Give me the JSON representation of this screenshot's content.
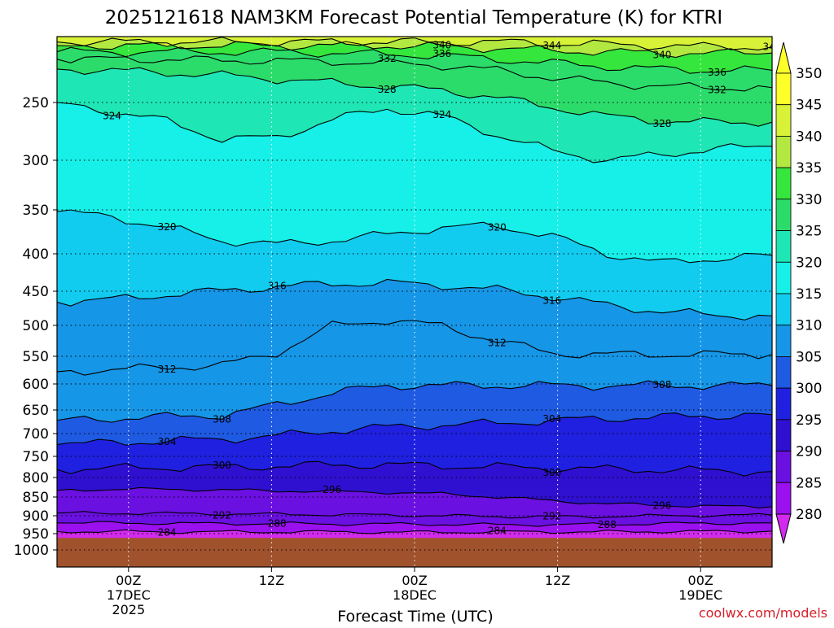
{
  "chart_data": {
    "type": "heatmap",
    "title": "2025121618 NAM3KM Forecast Potential Temperature (K) for KTRI",
    "xlabel": "Forecast Time (UTC)",
    "ylabel": "",
    "credit": "coolwx.com/models",
    "y_axis": {
      "unit": "hPa",
      "ticks": [
        "250",
        "300",
        "350",
        "400",
        "450",
        "500",
        "550",
        "600",
        "650",
        "700",
        "750",
        "800",
        "850",
        "900",
        "950",
        "1000"
      ],
      "range": [
        200,
        1050
      ]
    },
    "x_axis": {
      "unit": "hours since 2025121618",
      "range": [
        0,
        60
      ],
      "ticks": [
        {
          "hour": 6,
          "line1": "00Z",
          "line2": "17DEC",
          "line3": "2025"
        },
        {
          "hour": 18,
          "line1": "12Z",
          "line2": "",
          "line3": ""
        },
        {
          "hour": 30,
          "line1": "00Z",
          "line2": "18DEC",
          "line3": ""
        },
        {
          "hour": 42,
          "line1": "12Z",
          "line2": "",
          "line3": ""
        },
        {
          "hour": 54,
          "line1": "00Z",
          "line2": "19DEC",
          "line3": ""
        }
      ]
    },
    "colorbar": {
      "levels": [
        "350",
        "345",
        "340",
        "335",
        "330",
        "325",
        "320",
        "315",
        "310",
        "305",
        "300",
        "295",
        "290",
        "285",
        "280"
      ],
      "colors": [
        "#ffff2a",
        "#d7f237",
        "#b2e840",
        "#35e63d",
        "#2cdc6a",
        "#1ee6b4",
        "#16f0e8",
        "#12ccf0",
        "#1696e6",
        "#1e5ae2",
        "#2020e0",
        "#3010d0",
        "#6a10e0",
        "#9a10ee",
        "#d22aee"
      ]
    },
    "terrain_color": "#a0522d",
    "surface_pressure_hPa": 963,
    "contours": [
      {
        "label": "284",
        "values": [
          944,
          944,
          945,
          945,
          945,
          945,
          946,
          946,
          945,
          945,
          945,
          944,
          944,
          943
        ]
      },
      {
        "label": "288",
        "values": [
          920,
          920,
          921,
          922,
          922,
          923,
          923,
          924,
          925,
          925,
          924,
          922,
          921,
          920
        ]
      },
      {
        "label": "292",
        "values": [
          893,
          893,
          894,
          895,
          896,
          897,
          898,
          900,
          902,
          903,
          902,
          900,
          899,
          898
        ]
      },
      {
        "label": "296",
        "values": [
          833,
          830,
          830,
          832,
          834,
          836,
          838,
          842,
          850,
          860,
          868,
          872,
          875,
          876
        ]
      },
      {
        "label": "300",
        "values": [
          781,
          778,
          776,
          776,
          773,
          770,
          770,
          772,
          775,
          778,
          780,
          782,
          784,
          786
        ]
      },
      {
        "label": "304",
        "values": [
          724,
          720,
          716,
          712,
          705,
          694,
          686,
          682,
          678,
          672,
          668,
          665,
          662,
          660
        ]
      },
      {
        "label": "308",
        "values": [
          672,
          668,
          664,
          661,
          640,
          617,
          603,
          603,
          603,
          603,
          603,
          603,
          603,
          603
        ]
      },
      {
        "label": "312",
        "values": [
          578,
          574,
          570,
          566,
          544,
          501,
          492,
          501,
          525,
          545,
          547,
          547,
          547,
          547
        ]
      },
      {
        "label": "316",
        "values": [
          466,
          462,
          455,
          449,
          444,
          440,
          439,
          442,
          448,
          458,
          470,
          480,
          485,
          486
        ]
      },
      {
        "label": "320",
        "values": [
          352,
          358,
          370,
          385,
          389,
          385,
          378,
          370,
          368,
          380,
          400,
          412,
          406,
          402
        ]
      },
      {
        "label": "324",
        "values": [
          250,
          258,
          266,
          282,
          280,
          265,
          255,
          262,
          278,
          292,
          300,
          295,
          290,
          288
        ]
      },
      {
        "label": "328",
        "values": [
          223,
          224,
          226,
          228,
          231,
          234,
          237,
          240,
          246,
          254,
          262,
          266,
          267,
          267
        ]
      },
      {
        "label": "332",
        "values": [
          215,
          215,
          215,
          216,
          216,
          217,
          218,
          220,
          224,
          230,
          234,
          237,
          238,
          238
        ]
      },
      {
        "label": "336",
        "values": [
          209,
          209,
          209,
          209,
          209,
          210,
          211,
          212,
          215,
          218,
          221,
          223,
          224,
          224
        ]
      },
      {
        "label": "340",
        "values": [
          204,
          204,
          204,
          204,
          204,
          204,
          204,
          205,
          206,
          208,
          209,
          210,
          210,
          210
        ]
      },
      {
        "label": "344",
        "values": [
          201,
          201,
          201,
          201,
          201,
          201,
          201,
          201,
          201,
          202,
          203,
          204,
          205,
          205
        ]
      }
    ]
  }
}
